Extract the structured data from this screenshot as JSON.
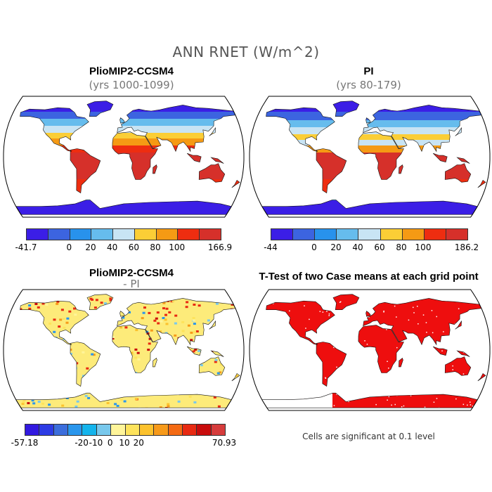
{
  "figure": {
    "title": "ANN RNET (W/m^2)"
  },
  "panels": [
    {
      "title": "PlioMIP2-CCSM4",
      "subtitle": "(yrs 1000-1099)",
      "colorbar": {
        "labels": [
          "-41.7",
          "0",
          "20",
          "40",
          "60",
          "80",
          "100",
          "166.9"
        ],
        "colors": [
          "#3b1ee6",
          "#3c64e0",
          "#2892ec",
          "#66bced",
          "#c8e4f4",
          "#fbce36",
          "#f59a14",
          "#ee2d10",
          "#d6302a"
        ]
      }
    },
    {
      "title": "PI",
      "subtitle": "(yrs 80-179)",
      "colorbar": {
        "labels": [
          "-44",
          "0",
          "20",
          "40",
          "60",
          "80",
          "100",
          "186.2"
        ],
        "colors": [
          "#3b1ee6",
          "#3c64e0",
          "#2892ec",
          "#66bced",
          "#c8e4f4",
          "#fbce36",
          "#f59a14",
          "#ee2d10",
          "#d6302a"
        ]
      }
    },
    {
      "title": "PlioMIP2-CCSM4",
      "subtitle": "- PI",
      "colorbar": {
        "labels": [
          "-57.18",
          "-20",
          "-10",
          "0",
          "10",
          "20",
          "70.93"
        ],
        "colors": [
          "#3219e0",
          "#2d3ce4",
          "#3c6edc",
          "#2a96ec",
          "#14b4ec",
          "#78c8ec",
          "#fff59a",
          "#fde35c",
          "#fcc22d",
          "#f79a1a",
          "#f46a13",
          "#e82a12",
          "#c80c0c",
          "#d63c3c"
        ]
      }
    },
    {
      "title": "T-Test of two Case means at each grid point",
      "note": "Cells are significant at 0.1 level"
    }
  ]
}
